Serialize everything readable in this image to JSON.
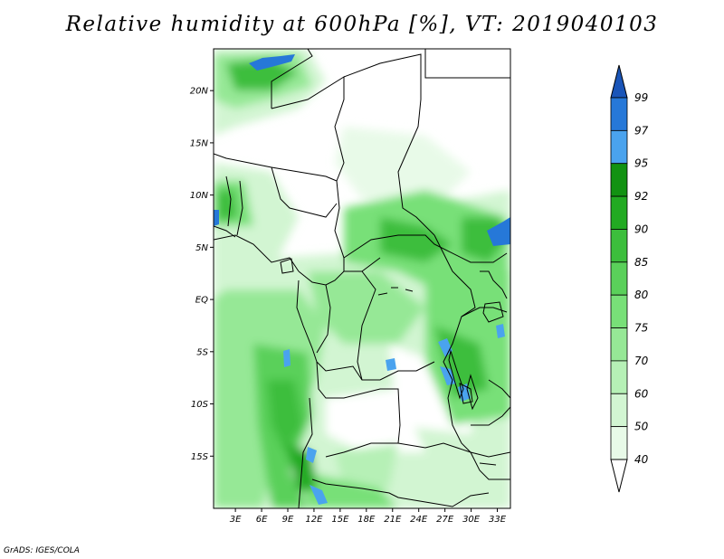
{
  "title": "Relative humidity at 600hPa [%], VT: 2019040103",
  "credit": "GrADS: IGES/COLA",
  "map": {
    "lat_range": [
      -20,
      24
    ],
    "lon_range": [
      0.5,
      34.5
    ],
    "lat_ticks": [
      "20N",
      "15N",
      "10N",
      "5N",
      "EQ",
      "5S",
      "10S",
      "15S"
    ],
    "lat_values": [
      20,
      15,
      10,
      5,
      0,
      -5,
      -10,
      -15
    ],
    "lon_ticks": [
      "3E",
      "6E",
      "9E",
      "12E",
      "15E",
      "18E",
      "21E",
      "24E",
      "27E",
      "30E",
      "33E"
    ],
    "lon_values": [
      3,
      6,
      9,
      12,
      15,
      18,
      21,
      24,
      27,
      30,
      33
    ]
  },
  "colorbar": {
    "levels": [
      "40",
      "50",
      "60",
      "70",
      "75",
      "80",
      "85",
      "90",
      "92",
      "95",
      "97",
      "99"
    ],
    "colors": {
      "below_40": "#ffffff",
      "40-50": "#e8fae8",
      "50-60": "#d2f5d2",
      "60-70": "#b6f0b6",
      "70-75": "#96e896",
      "75-80": "#78e078",
      "80-85": "#5ad05a",
      "85-90": "#3cbe3c",
      "90-92": "#22aa22",
      "92-95": "#129212",
      "95-97": "#4aa3ee",
      "97-99": "#2678d8",
      "above_99": "#1a55b8"
    }
  }
}
